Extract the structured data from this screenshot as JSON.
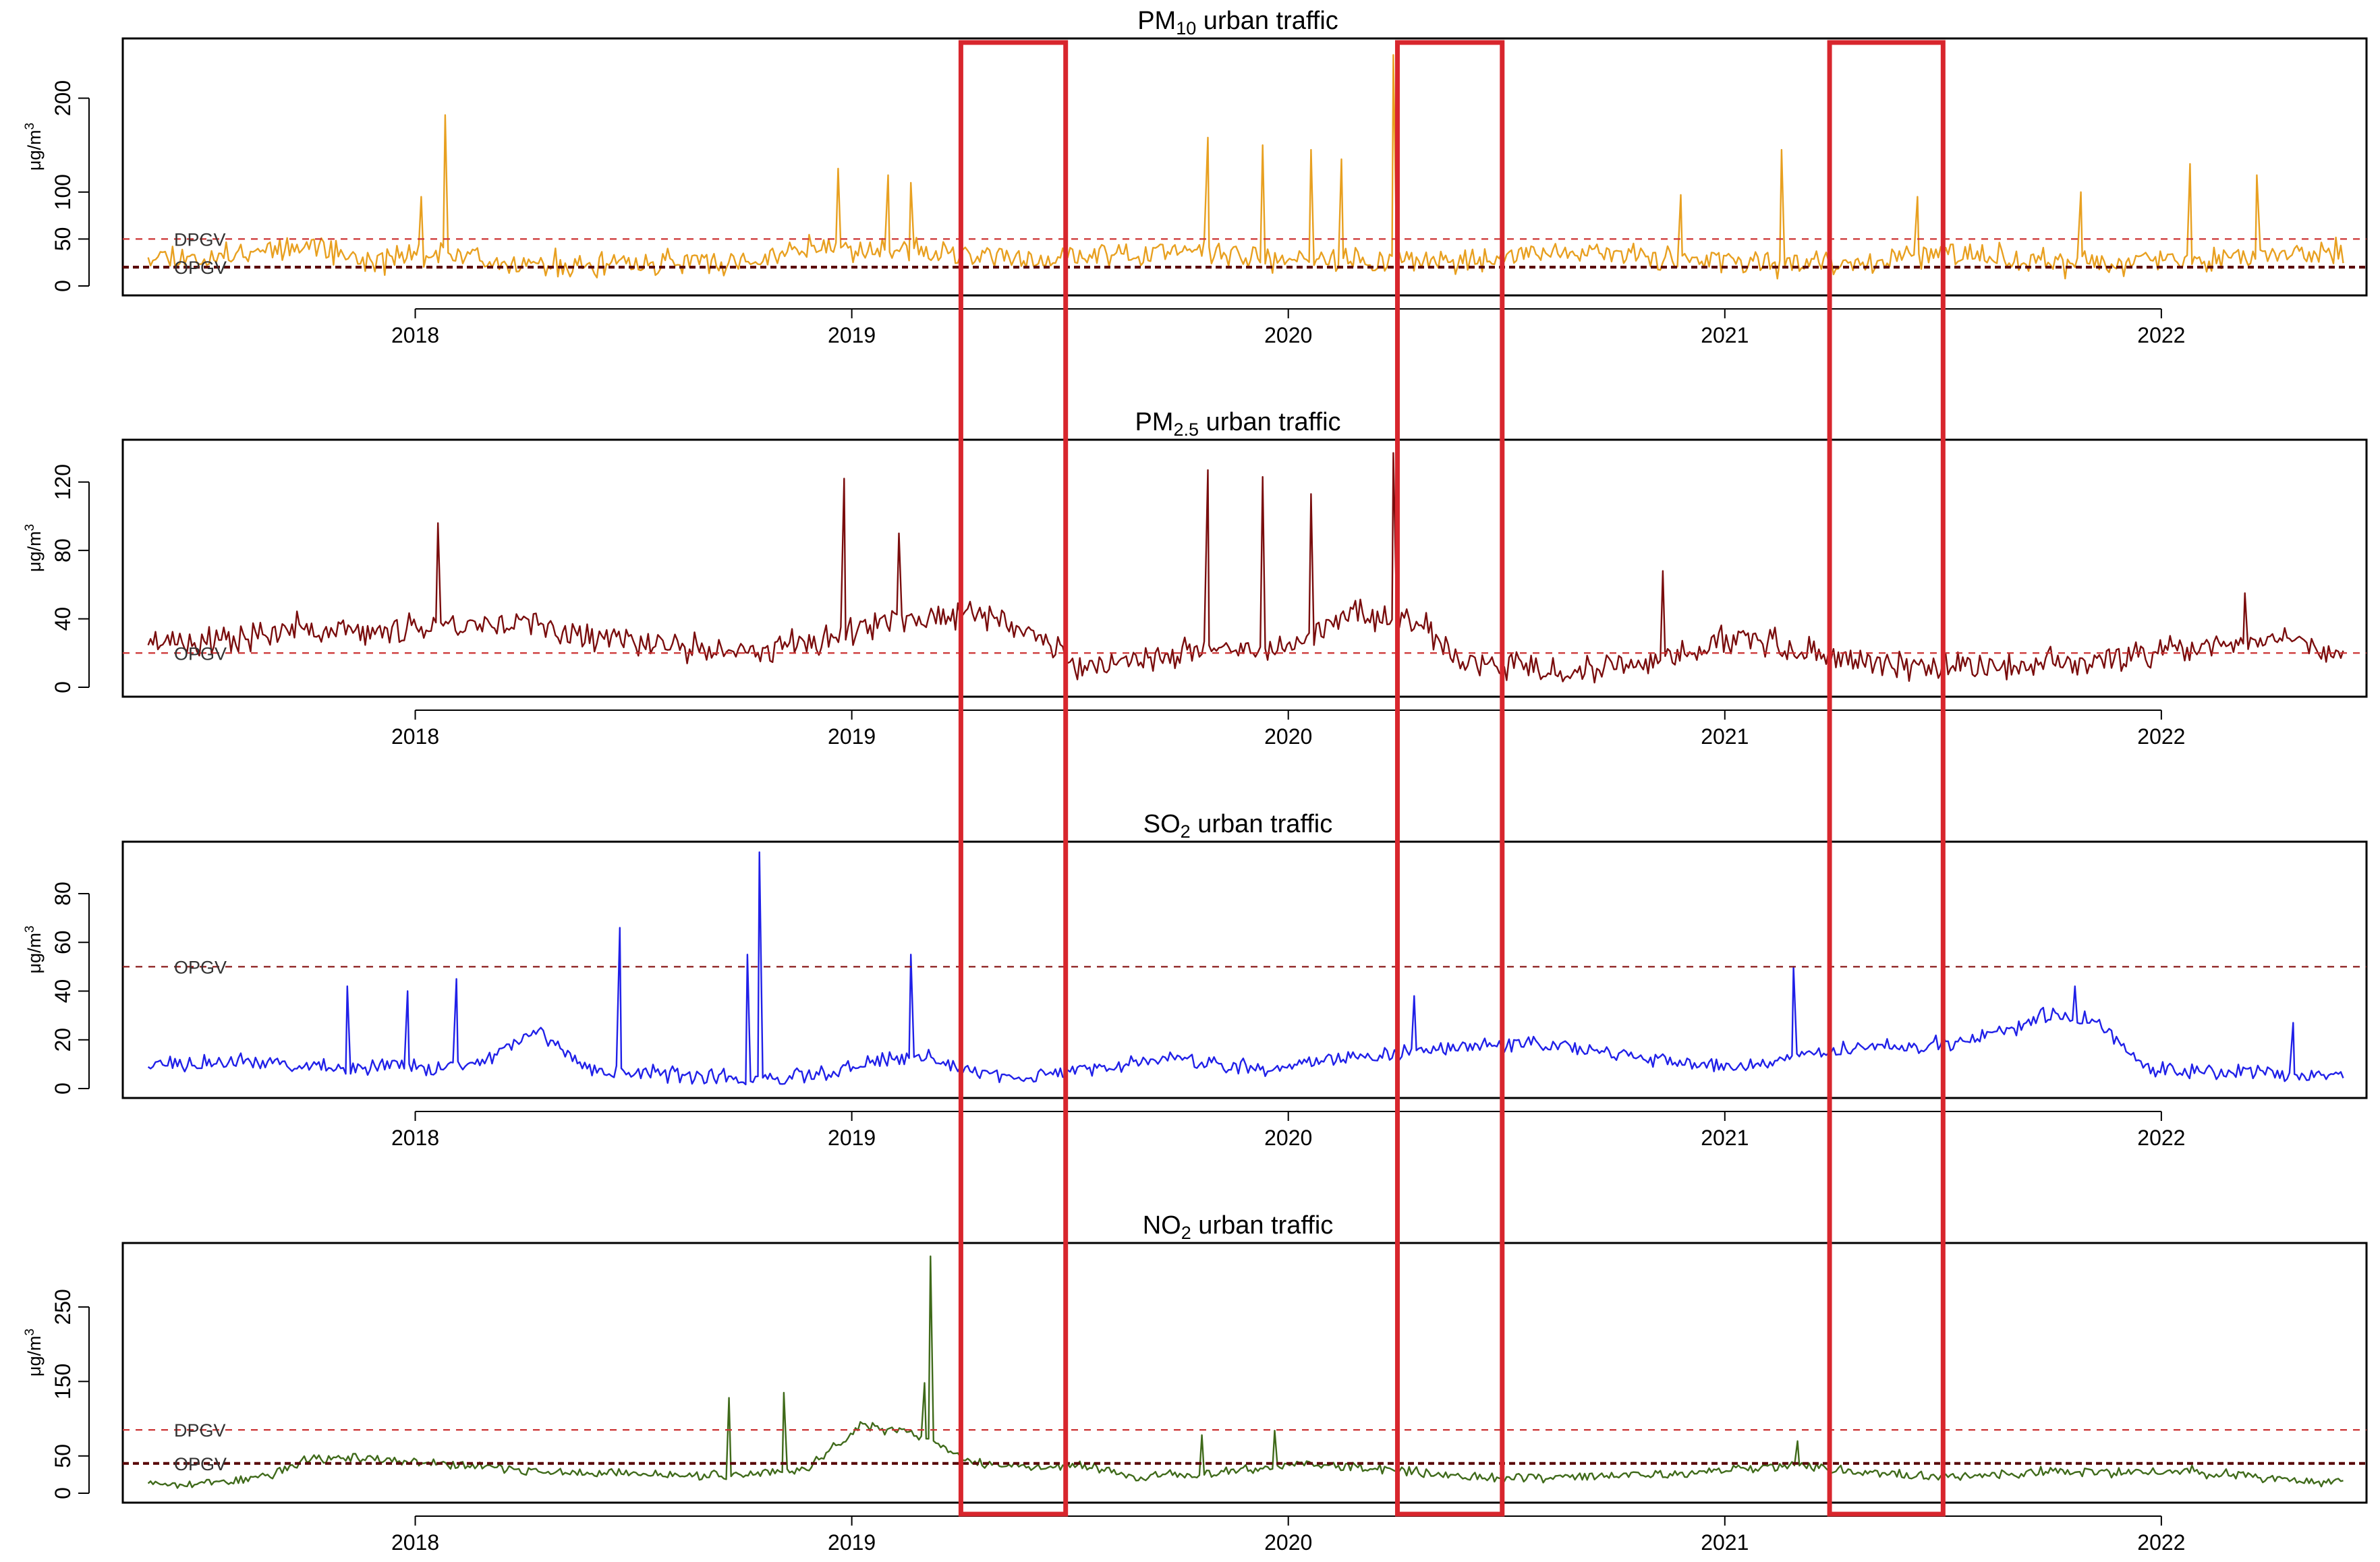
{
  "figure": {
    "highlight_color": "#d8262d",
    "highlight_periods": [
      {
        "start": 2019.25,
        "end": 2019.49
      },
      {
        "start": 2020.25,
        "end": 2020.49
      },
      {
        "start": 2021.24,
        "end": 2021.5
      }
    ]
  },
  "chart_data": [
    {
      "type": "line",
      "title": "PM",
      "title_sub": "10",
      "title_rest": " urban traffic",
      "ylabel": "μg/m",
      "ylabel_sup": "3",
      "ylim": [
        0,
        255
      ],
      "yticks": [
        0,
        50,
        100,
        200
      ],
      "xticks": [
        "2018",
        "2019",
        "2020",
        "2021",
        "2022"
      ],
      "x_range": [
        "2017-05-21",
        "2022-06-01"
      ],
      "color": "#e8a020",
      "line_width": 2.4,
      "baseline": [
        35,
        28,
        40,
        45,
        26,
        35,
        30,
        22,
        20,
        25,
        26,
        24,
        42,
        40,
        35,
        32,
        28,
        30,
        35,
        38,
        32,
        30,
        28,
        28,
        26,
        34,
        36,
        32,
        30,
        25,
        24,
        22,
        30,
        34,
        28,
        24,
        25,
        27,
        30,
        32,
        32
      ],
      "spikes": [
        {
          "x": "2018-01-26",
          "y": 182
        },
        {
          "x": "2018-01-06",
          "y": 95
        },
        {
          "x": "2018-12-20",
          "y": 125
        },
        {
          "x": "2019-02-01",
          "y": 118
        },
        {
          "x": "2019-02-20",
          "y": 110
        },
        {
          "x": "2019-10-25",
          "y": 158
        },
        {
          "x": "2019-12-10",
          "y": 150
        },
        {
          "x": "2020-01-20",
          "y": 145
        },
        {
          "x": "2020-02-15",
          "y": 135
        },
        {
          "x": "2020-03-28",
          "y": 246
        },
        {
          "x": "2020-11-25",
          "y": 97
        },
        {
          "x": "2021-02-18",
          "y": 145
        },
        {
          "x": "2021-06-10",
          "y": 95
        },
        {
          "x": "2021-10-25",
          "y": 100
        },
        {
          "x": "2022-01-25",
          "y": 130
        },
        {
          "x": "2022-03-20",
          "y": 118
        }
      ],
      "noise": 14,
      "seed": 11,
      "ref_lines": [
        {
          "label": "DPGV",
          "y": 50,
          "color": "#cc3333",
          "dash": "10,9",
          "width": 2.2
        },
        {
          "label": "OPGV",
          "y": 20,
          "color": "#5a0a0a",
          "dash": "9,6",
          "width": 4.2
        }
      ]
    },
    {
      "type": "line",
      "title": "PM",
      "title_sub": "2.5",
      "title_rest": " urban traffic",
      "ylabel": "μg/m",
      "ylabel_sup": "3",
      "ylim": [
        0,
        140
      ],
      "yticks": [
        0,
        40,
        80,
        120
      ],
      "xticks": [
        "2018",
        "2019",
        "2020",
        "2021",
        "2022"
      ],
      "x_range": [
        "2017-05-21",
        "2022-06-01"
      ],
      "color": "#7a0d0d",
      "line_width": 2.4,
      "baseline": [
        28,
        26,
        30,
        34,
        32,
        36,
        38,
        36,
        30,
        26,
        22,
        20,
        26,
        34,
        40,
        44,
        34,
        12,
        16,
        20,
        22,
        26,
        44,
        40,
        14,
        12,
        10,
        12,
        20,
        30,
        22,
        16,
        12,
        12,
        14,
        14,
        18,
        22,
        26,
        30,
        18
      ],
      "spikes": [
        {
          "x": "2018-01-20",
          "y": 96
        },
        {
          "x": "2018-12-25",
          "y": 122
        },
        {
          "x": "2019-02-10",
          "y": 90
        },
        {
          "x": "2019-10-25",
          "y": 127
        },
        {
          "x": "2019-12-10",
          "y": 123
        },
        {
          "x": "2020-01-20",
          "y": 113
        },
        {
          "x": "2020-03-28",
          "y": 137
        },
        {
          "x": "2020-11-10",
          "y": 68
        },
        {
          "x": "2022-03-10",
          "y": 55
        }
      ],
      "noise": 9,
      "seed": 23,
      "ref_lines": [
        {
          "label": "OPGV",
          "y": 20,
          "color": "#cc3333",
          "dash": "10,9",
          "width": 2.2
        }
      ]
    },
    {
      "type": "line",
      "title": "SO",
      "title_sub": "2",
      "title_rest": " urban traffic",
      "ylabel": "μg/m",
      "ylabel_sup": "3",
      "ylim": [
        0,
        98
      ],
      "yticks": [
        0,
        20,
        40,
        60,
        80
      ],
      "xticks": [
        "2018",
        "2019",
        "2020",
        "2021",
        "2022"
      ],
      "x_range": [
        "2017-05-21",
        "2022-06-01"
      ],
      "color": "#2020e8",
      "line_width": 2.4,
      "baseline": [
        10,
        10,
        11,
        10,
        8,
        10,
        8,
        12,
        24,
        8,
        6,
        6,
        4,
        5,
        6,
        12,
        12,
        6,
        5,
        7,
        10,
        12,
        10,
        8,
        12,
        13,
        15,
        17,
        18,
        18,
        14,
        12,
        9,
        10,
        14,
        16,
        17,
        18,
        24,
        30,
        28,
        8,
        7,
        7,
        5,
        6
      ],
      "spikes": [
        {
          "x": "2017-11-05",
          "y": 42
        },
        {
          "x": "2017-12-25",
          "y": 40
        },
        {
          "x": "2018-02-05",
          "y": 45
        },
        {
          "x": "2018-06-20",
          "y": 66
        },
        {
          "x": "2018-10-15",
          "y": 97
        },
        {
          "x": "2018-10-05",
          "y": 55
        },
        {
          "x": "2019-02-20",
          "y": 55
        },
        {
          "x": "2020-04-15",
          "y": 38
        },
        {
          "x": "2021-02-28",
          "y": 50
        },
        {
          "x": "2021-10-20",
          "y": 42
        },
        {
          "x": "2022-04-20",
          "y": 27
        }
      ],
      "noise": 3.5,
      "seed": 37,
      "ref_lines": [
        {
          "label": "OPGV",
          "y": 50,
          "color": "#8a1a1a",
          "dash": "10,9",
          "width": 2.2
        }
      ]
    },
    {
      "type": "line",
      "title": "NO",
      "title_sub": "2",
      "title_rest": " urban traffic",
      "ylabel": "μg/m",
      "ylabel_sup": "3",
      "ylim": [
        0,
        325
      ],
      "yticks": [
        0,
        50,
        150,
        250
      ],
      "xticks": [
        "2018",
        "2019",
        "2020",
        "2021",
        "2022"
      ],
      "x_range": [
        "2017-05-21",
        "2022-06-01"
      ],
      "color": "#3f6a1a",
      "line_width": 2.4,
      "baseline": [
        15,
        12,
        20,
        45,
        48,
        40,
        36,
        30,
        28,
        26,
        24,
        26,
        32,
        90,
        80,
        42,
        34,
        36,
        22,
        25,
        30,
        40,
        34,
        30,
        22,
        20,
        22,
        24,
        26,
        32,
        40,
        30,
        24,
        22,
        28,
        30,
        28,
        30,
        26,
        18,
        14
      ],
      "spikes": [
        {
          "x": "2018-09-20",
          "y": 128
        },
        {
          "x": "2018-11-05",
          "y": 135
        },
        {
          "x": "2019-03-01",
          "y": 148
        },
        {
          "x": "2019-03-06",
          "y": 318
        },
        {
          "x": "2019-10-20",
          "y": 78
        },
        {
          "x": "2019-12-20",
          "y": 84
        },
        {
          "x": "2021-03-01",
          "y": 70
        }
      ],
      "noise": 7,
      "seed": 53,
      "ref_lines": [
        {
          "label": "DPGV",
          "y": 85,
          "color": "#cc3333",
          "dash": "10,9",
          "width": 2.2
        },
        {
          "label": "OPGV",
          "y": 40,
          "color": "#5a0a0a",
          "dash": "9,6",
          "width": 4.2
        }
      ]
    }
  ]
}
